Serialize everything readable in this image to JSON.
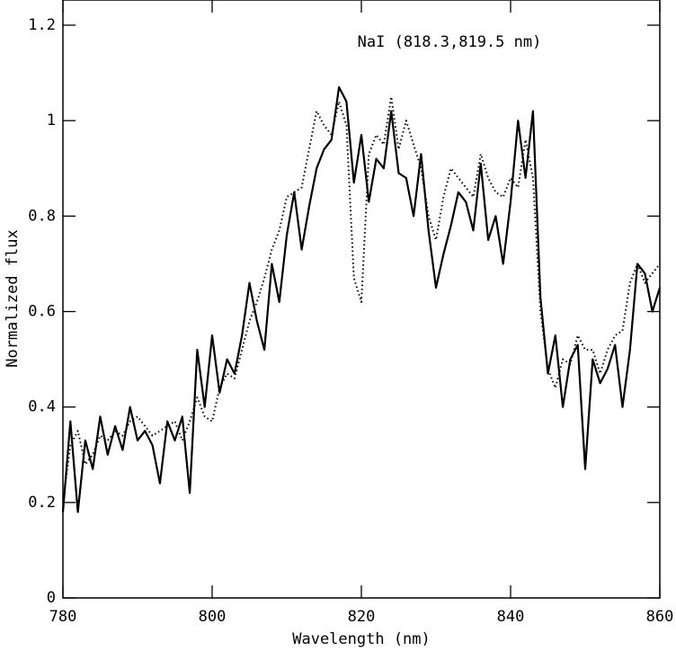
{
  "chart_data": {
    "type": "line",
    "annotation": "NaI (818.3,819.5 nm)",
    "xlabel": "Wavelength (nm)",
    "ylabel": "Normalized flux",
    "x": [
      780,
      781,
      782,
      783,
      784,
      785,
      786,
      787,
      788,
      789,
      790,
      791,
      792,
      793,
      794,
      795,
      796,
      797,
      798,
      799,
      800,
      801,
      802,
      803,
      804,
      805,
      806,
      807,
      808,
      809,
      810,
      811,
      812,
      813,
      814,
      815,
      816,
      817,
      818,
      819,
      820,
      821,
      822,
      823,
      824,
      825,
      826,
      827,
      828,
      829,
      830,
      831,
      832,
      833,
      834,
      835,
      836,
      837,
      838,
      839,
      840,
      841,
      842,
      843,
      844,
      845,
      846,
      847,
      848,
      849,
      850,
      851,
      852,
      853,
      854,
      855,
      856,
      857,
      858,
      859,
      860
    ],
    "series": [
      {
        "color": "#000000",
        "dash": "solid",
        "values": [
          0.18,
          0.37,
          0.18,
          0.33,
          0.27,
          0.38,
          0.3,
          0.36,
          0.31,
          0.4,
          0.33,
          0.35,
          0.32,
          0.24,
          0.37,
          0.33,
          0.38,
          0.22,
          0.52,
          0.4,
          0.55,
          0.43,
          0.5,
          0.47,
          0.55,
          0.66,
          0.58,
          0.52,
          0.7,
          0.62,
          0.76,
          0.85,
          0.73,
          0.82,
          0.9,
          0.94,
          0.96,
          1.07,
          1.04,
          0.87,
          0.97,
          0.83,
          0.92,
          0.9,
          1.02,
          0.89,
          0.88,
          0.8,
          0.93,
          0.77,
          0.65,
          0.72,
          0.78,
          0.85,
          0.83,
          0.77,
          0.91,
          0.75,
          0.8,
          0.7,
          0.83,
          1.0,
          0.88,
          1.02,
          0.63,
          0.47,
          0.55,
          0.4,
          0.5,
          0.53,
          0.27,
          0.5,
          0.45,
          0.48,
          0.53,
          0.4,
          0.52,
          0.7,
          0.68,
          0.6,
          0.65
        ]
      },
      {
        "color": "#000000",
        "dash": "dotted",
        "values": [
          0.2,
          0.32,
          0.35,
          0.28,
          0.3,
          0.34,
          0.33,
          0.35,
          0.34,
          0.37,
          0.38,
          0.36,
          0.34,
          0.35,
          0.36,
          0.37,
          0.33,
          0.37,
          0.42,
          0.38,
          0.37,
          0.44,
          0.47,
          0.46,
          0.52,
          0.58,
          0.62,
          0.67,
          0.73,
          0.77,
          0.84,
          0.85,
          0.86,
          0.94,
          1.02,
          0.99,
          0.97,
          1.04,
          0.99,
          0.67,
          0.62,
          0.93,
          0.97,
          0.95,
          1.05,
          0.94,
          1.0,
          0.95,
          0.9,
          0.8,
          0.75,
          0.84,
          0.9,
          0.88,
          0.86,
          0.84,
          0.93,
          0.88,
          0.85,
          0.84,
          0.88,
          0.86,
          0.96,
          0.88,
          0.6,
          0.48,
          0.44,
          0.5,
          0.49,
          0.55,
          0.52,
          0.52,
          0.47,
          0.52,
          0.55,
          0.56,
          0.66,
          0.7,
          0.66,
          0.68,
          0.7
        ]
      }
    ],
    "xlim": [
      780,
      860
    ],
    "xticks": [
      780,
      800,
      820,
      840,
      860
    ],
    "ylim": [
      0,
      1.2
    ],
    "yticks": [
      0,
      0.2,
      0.4,
      0.6,
      0.8,
      1,
      1.2
    ],
    "grid": false
  }
}
